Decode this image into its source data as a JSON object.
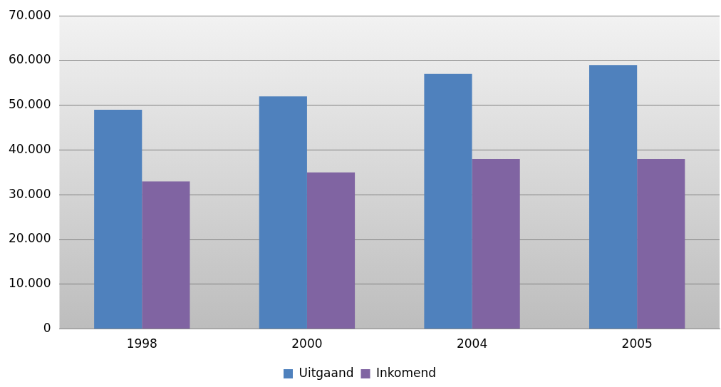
{
  "chart_data": {
    "type": "bar",
    "categories": [
      "1998",
      "2000",
      "2004",
      "2005"
    ],
    "series": [
      {
        "name": "Uitgaand",
        "color": "#4f81bd",
        "values": [
          49000,
          52000,
          57000,
          59000
        ]
      },
      {
        "name": "Inkomend",
        "color": "#8064a2",
        "values": [
          33000,
          35000,
          38000,
          38000
        ]
      }
    ],
    "ylim": [
      0,
      70000
    ],
    "yticks": [
      {
        "value": 0,
        "label": "0"
      },
      {
        "value": 10000,
        "label": "10.000"
      },
      {
        "value": 20000,
        "label": "20.000"
      },
      {
        "value": 30000,
        "label": "30.000"
      },
      {
        "value": 40000,
        "label": "40.000"
      },
      {
        "value": 50000,
        "label": "50.000"
      },
      {
        "value": 60000,
        "label": "60.000"
      },
      {
        "value": 70000,
        "label": "70.000"
      }
    ],
    "grid": "y",
    "legend": "bottom"
  }
}
